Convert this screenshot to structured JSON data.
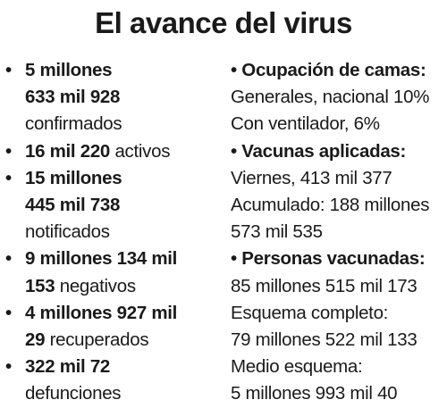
{
  "title": "El avance del virus",
  "bullet": "•",
  "left_items": [
    {
      "value_line1": "5 millones",
      "value_line2": "633 mil 928",
      "label": "confirmados"
    },
    {
      "value": "16 mil 220",
      "label": "activos"
    },
    {
      "value_line1": "15 millones",
      "value_line2": "445 mil 738",
      "label": "notificados"
    },
    {
      "value_line1": "9 millones 134 mil",
      "value_line2": "153",
      "label": "negativos"
    },
    {
      "value_line1": "4 millones 927 mil",
      "value_line2": "29",
      "label": "recuperados"
    },
    {
      "value": "322 mil 72",
      "label": "defunciones"
    }
  ],
  "right_sections": [
    {
      "heading": "Ocupación de camas:",
      "lines": [
        "Generales, nacional 10%",
        "Con ventilador, 6%"
      ]
    },
    {
      "heading": "Vacunas aplicadas:",
      "lines": [
        "Viernes, 413 mil 377",
        "Acumulado: 188 millones",
        "573 mil 535"
      ]
    },
    {
      "heading": "Personas vacunadas:",
      "lines": [
        "85 millones 515 mil 173",
        "Esquema completo:",
        "79 millones 522 mil 133",
        "Medio esquema:",
        "5 millones 993 mil 40"
      ]
    }
  ]
}
